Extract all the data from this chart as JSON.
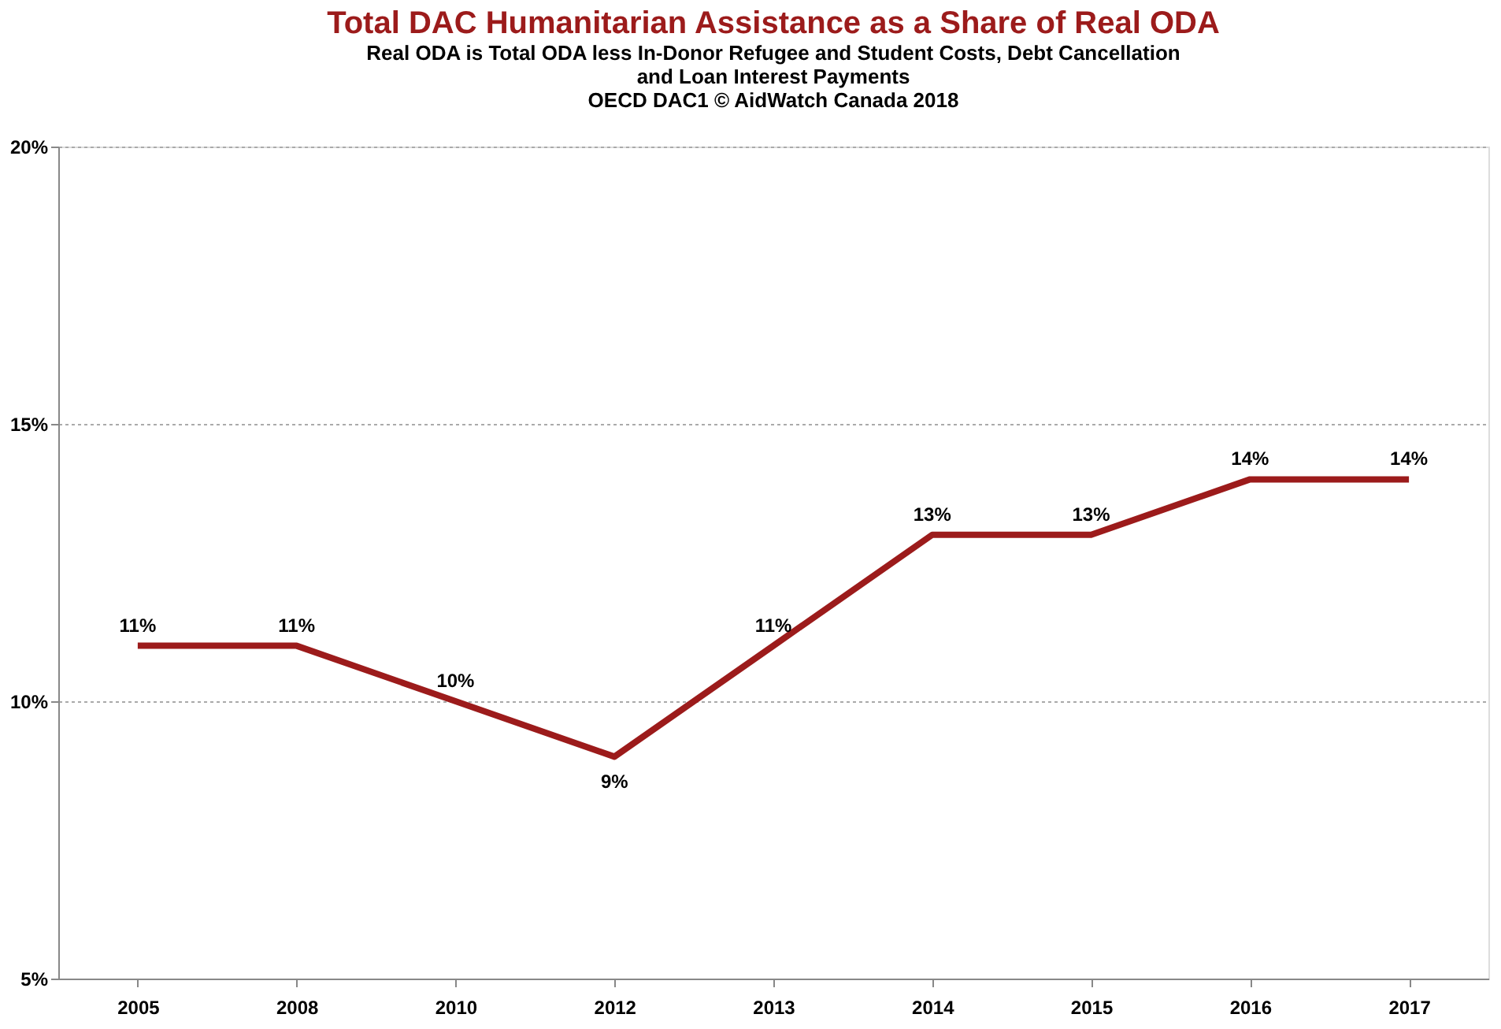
{
  "chart_data": {
    "type": "line",
    "title": "Total DAC Humanitarian Assistance as a Share of Real ODA",
    "subtitle": "Real ODA is Total ODA less In-Donor Refugee and Student Costs, Debt Cancellation\nand Loan Interest Payments\nOECD DAC1     © AidWatch Canada 2018",
    "categories": [
      "2005",
      "2008",
      "2010",
      "2012",
      "2013",
      "2014",
      "2015",
      "2016",
      "2017"
    ],
    "series": [
      {
        "color": "#9c1b1b",
        "values": [
          11,
          11,
          10,
          9,
          11,
          13,
          13,
          14,
          14
        ]
      }
    ],
    "ylim": [
      5,
      20
    ],
    "yticks": [
      {
        "value": 5,
        "label": "5%"
      },
      {
        "value": 10,
        "label": "10%"
      },
      {
        "value": 15,
        "label": "15%"
      },
      {
        "value": 20,
        "label": "20%"
      }
    ],
    "grid": "y",
    "value_labels": [
      "11%",
      "11%",
      "10%",
      "9%",
      "11%",
      "13%",
      "13%",
      "14%",
      "14%"
    ],
    "marker": "none",
    "line_style": "solid"
  }
}
